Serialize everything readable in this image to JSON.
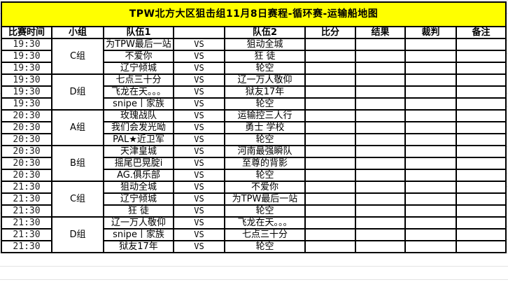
{
  "title": "TPW北方大区狙击组11月8日赛程-循环赛-运输船地图",
  "headers": [
    "比赛时间",
    "小组",
    "队伍1",
    "",
    "队伍2",
    "比分",
    "结果",
    "裁判",
    "备注"
  ],
  "groups": [
    {
      "name": "C组",
      "matches": [
        {
          "time": "19:30",
          "team1": "为TPW最后一站",
          "vs": "VS",
          "team2": "狙动全城"
        },
        {
          "time": "19:30",
          "team1": "不爱你",
          "vs": "VS",
          "team2": "狂  徒"
        },
        {
          "time": "19:30",
          "team1": "辽宁倾城",
          "vs": "VS",
          "team2": "轮空"
        }
      ]
    },
    {
      "name": "D组",
      "matches": [
        {
          "time": "19:30",
          "team1": "七点三十分",
          "vs": "VS",
          "team2": "辽一万人敬仰"
        },
        {
          "time": "19:30",
          "team1": "飞龙在天。。。",
          "vs": "VS",
          "team2": "狱友17年"
        },
        {
          "time": "19:30",
          "team1": "snipe丨家族",
          "vs": "VS",
          "team2": "轮空"
        }
      ]
    },
    {
      "name": "A组",
      "matches": [
        {
          "time": "20:30",
          "team1": "玫瑰战队",
          "vs": "VS",
          "team2": "运输控三人行"
        },
        {
          "time": "20:30",
          "team1": "我们会发光呦",
          "vs": "VS",
          "team2": "勇士  学校"
        },
        {
          "time": "20:30",
          "team1": "PAL★近卫军",
          "vs": "VS",
          "team2": "轮空"
        }
      ]
    },
    {
      "name": "B组",
      "matches": [
        {
          "time": "20:30",
          "team1": "天津皇城",
          "vs": "VS",
          "team2": "河南最强瞬队"
        },
        {
          "time": "20:30",
          "team1": "摇尾巴晃腚i",
          "vs": "VS",
          "team2": "至尊的背影"
        },
        {
          "time": "20:30",
          "team1": "AG.俱乐部",
          "vs": "VS",
          "team2": "轮空"
        }
      ]
    },
    {
      "name": "C组",
      "matches": [
        {
          "time": "21:30",
          "team1": "狙动全城",
          "vs": "VS",
          "team2": "不爱你"
        },
        {
          "time": "21:30",
          "team1": "辽宁倾城",
          "vs": "VS",
          "team2": "为TPW最后一站"
        },
        {
          "time": "21:30",
          "team1": "狂  徒",
          "vs": "VS",
          "team2": "轮空"
        }
      ]
    },
    {
      "name": "D组",
      "matches": [
        {
          "time": "21:30",
          "team1": "辽一万人敬仰",
          "vs": "VS",
          "team2": "飞龙在天。。。"
        },
        {
          "time": "21:30",
          "team1": "snipe丨家族",
          "vs": "VS",
          "team2": "七点三十分"
        },
        {
          "time": "21:30",
          "team1": "狱友17年",
          "vs": "VS",
          "team2": "轮空"
        }
      ]
    }
  ],
  "colors": {
    "title_bg": "#ffff00",
    "border": "#000000"
  }
}
